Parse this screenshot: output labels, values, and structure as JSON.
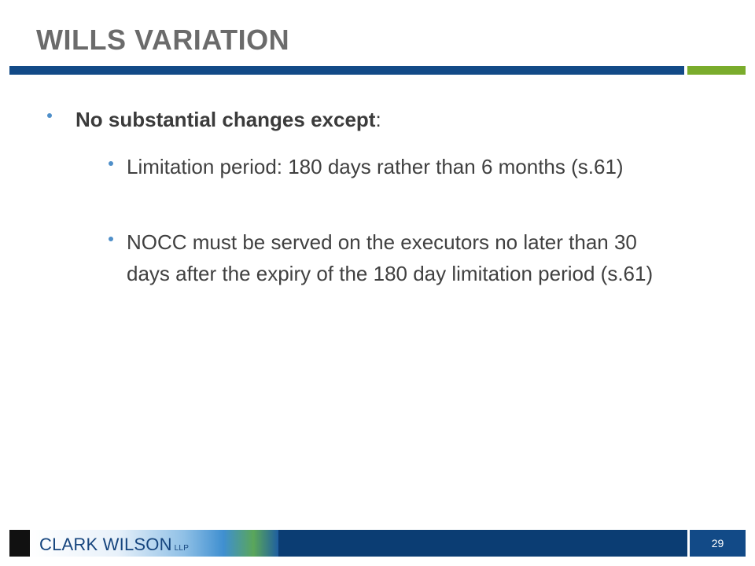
{
  "slide": {
    "title": "WILLS VARIATION",
    "page_number": "29"
  },
  "content": {
    "bullet1_bold": "No substantial changes except",
    "bullet1_suffix": ":",
    "sub_bullets": [
      "Limitation period: 180 days rather than 6 months (s.61)",
      "NOCC must be served on the executors no later than 30 days after the expiry of the 180 day limitation period  (s.61)"
    ]
  },
  "footer": {
    "brand": "CLARK WILSON",
    "brand_suffix": "LLP"
  },
  "colors": {
    "title": "#6b6b6b",
    "rule_blue": "#124a87",
    "rule_green": "#7aac2c",
    "bullet": "#4f8fc9",
    "footer_band": "#0b3d73"
  }
}
